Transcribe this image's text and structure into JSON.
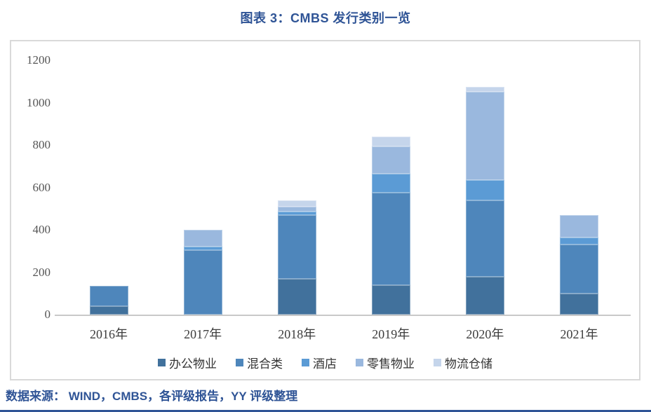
{
  "chart_data": {
    "type": "bar",
    "stacked": true,
    "title": "图表 3：CMBS 发行类别一览",
    "categories": [
      "2016年",
      "2017年",
      "2018年",
      "2019年",
      "2020年",
      "2021年"
    ],
    "series": [
      {
        "name": "办公物业",
        "color": "#41719C",
        "values": [
          40,
          0,
          170,
          140,
          180,
          100
        ]
      },
      {
        "name": "混合类",
        "color": "#4E86BB",
        "values": [
          95,
          305,
          300,
          435,
          360,
          230
        ]
      },
      {
        "name": "酒店",
        "color": "#5B9BD5",
        "values": [
          0,
          15,
          15,
          90,
          95,
          35
        ]
      },
      {
        "name": "零售物业",
        "color": "#9AB8DE",
        "values": [
          0,
          80,
          25,
          130,
          415,
          105
        ]
      },
      {
        "name": "物流仓储",
        "color": "#C5D5EB",
        "values": [
          0,
          0,
          30,
          45,
          25,
          0
        ]
      }
    ],
    "totals": [
      135,
      400,
      540,
      840,
      1075,
      470
    ],
    "xlabel": "",
    "ylabel": "",
    "ylim": [
      0,
      1200
    ],
    "yticks": [
      0,
      200,
      400,
      600,
      800,
      1000,
      1200
    ],
    "grid": false,
    "legend_position": "bottom"
  },
  "source_note": "数据来源： WIND，CMBS，各评级报告，YY 评级整理",
  "colors": {
    "accent_blue": "#2F5496",
    "axis_line": "#C9C9C9",
    "box_border": "#D9D9D9",
    "tick_text": "#555555"
  }
}
